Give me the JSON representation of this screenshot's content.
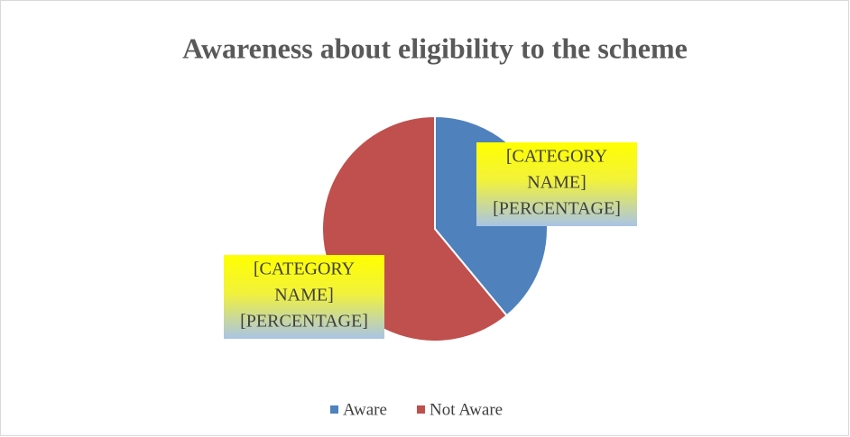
{
  "chart_data": {
    "type": "pie",
    "title": "Awareness about eligibility to the scheme",
    "categories": [
      "Aware",
      "Not Aware"
    ],
    "values": [
      39,
      61
    ],
    "colors": [
      "#4f81bd",
      "#c0504d"
    ],
    "data_labels": [
      [
        "[CATEGORY",
        "NAME]",
        "[PERCENTAGE]"
      ],
      [
        "[CATEGORY",
        "NAME]",
        "[PERCENTAGE]"
      ]
    ],
    "legend": "bottom"
  }
}
